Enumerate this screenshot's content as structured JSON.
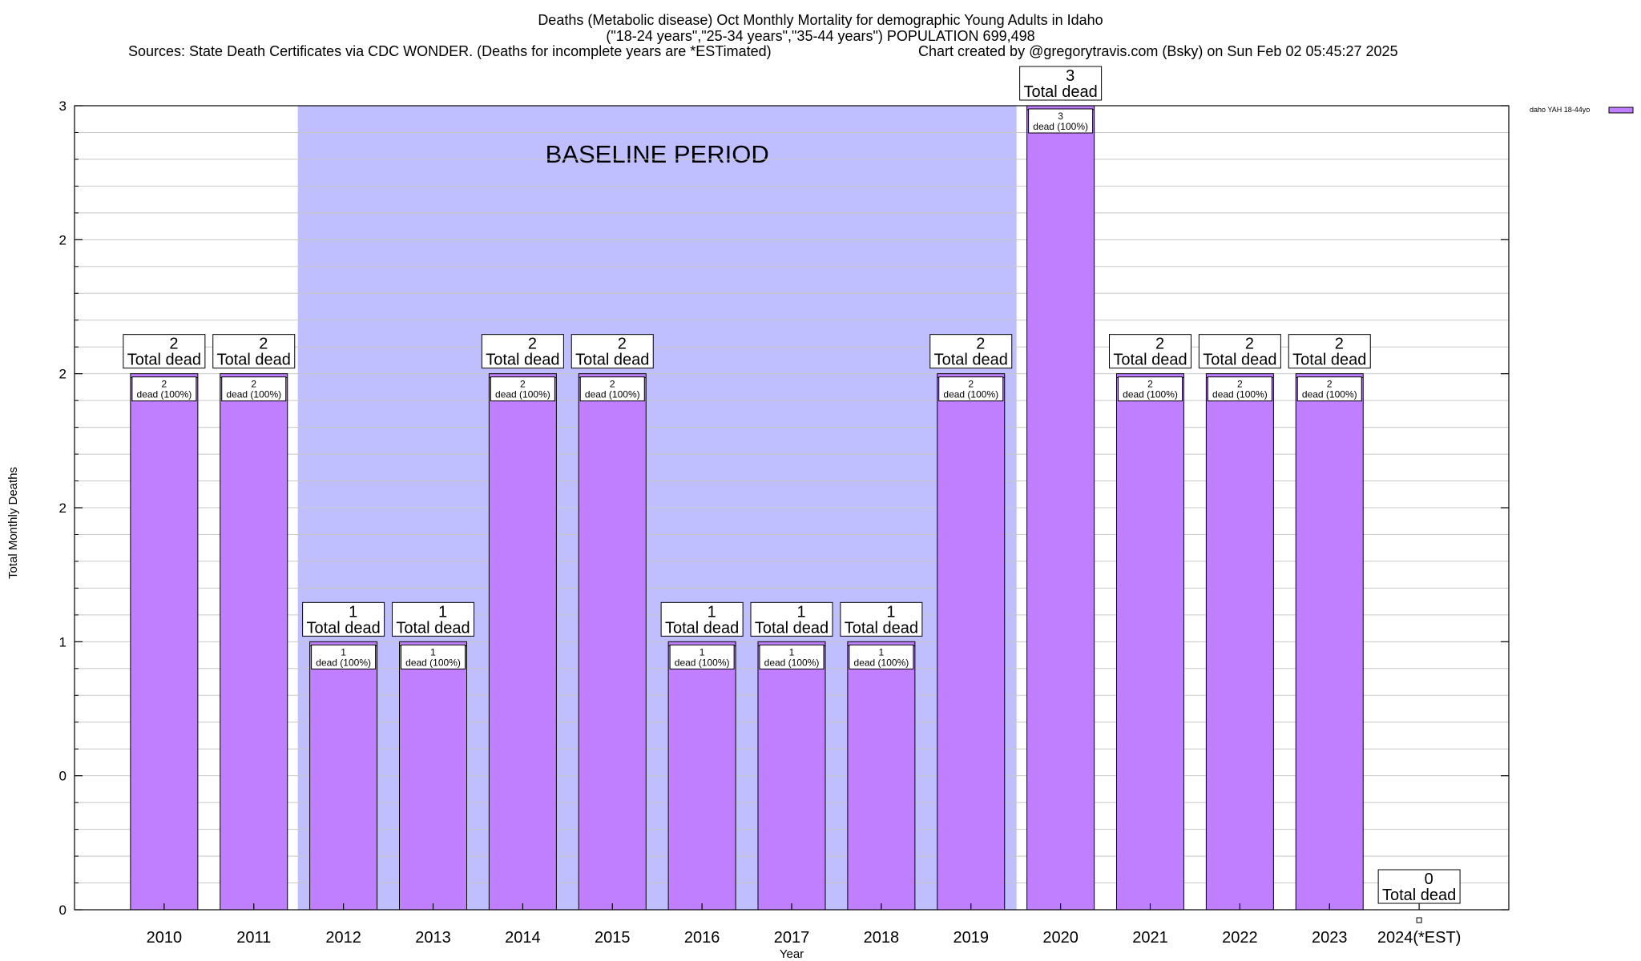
{
  "chart_data": {
    "type": "bar",
    "title_lines": [
      "Deaths (Metabolic disease) Oct Monthly Mortality for demographic Young Adults in Idaho",
      "(\"18-24 years\",\"25-34 years\",\"35-44 years\") POPULATION 699,498"
    ],
    "sources": "Sources: State Death Certificates via CDC WONDER. (Deaths for incomplete years are *ESTimated)",
    "credit": "Chart created by @gregorytravis.com (Bsky) on Sun Feb 02 05:45:27 2025",
    "xlabel": "Year",
    "ylabel": "Total Monthly Deaths",
    "ylim": [
      0,
      3
    ],
    "yticks": [
      0,
      0.5,
      1,
      1.5,
      2,
      2.5,
      3
    ],
    "ytick_labels": [
      "0",
      "0",
      "1",
      "2",
      "2",
      "2",
      "3"
    ],
    "grid": true,
    "categories": [
      "2010",
      "2011",
      "2012",
      "2013",
      "2014",
      "2015",
      "2016",
      "2017",
      "2018",
      "2019",
      "2020",
      "2021",
      "2022",
      "2023",
      "2024(*EST)"
    ],
    "series": [
      {
        "name": "daho YAH 18-44yo",
        "values": [
          2,
          2,
          1,
          1,
          2,
          2,
          1,
          1,
          1,
          2,
          3,
          2,
          2,
          2,
          0
        ]
      }
    ],
    "total_labels": [
      "2",
      "2",
      "1",
      "1",
      "2",
      "2",
      "1",
      "1",
      "1",
      "2",
      "3",
      "2",
      "2",
      "2",
      "0"
    ],
    "total_suffix": "Total dead",
    "inner_labels": [
      "2",
      "2",
      "1",
      "1",
      "2",
      "2",
      "1",
      "1",
      "1",
      "2",
      "3",
      "2",
      "2",
      "2",
      ""
    ],
    "inner_suffix": "dead (100%)",
    "baseline": {
      "label": "BASELINE PERIOD",
      "start": "2012",
      "end": "2019"
    },
    "legend_position": "top-right",
    "colors": {
      "bar": "#bf7fff",
      "baseline": "#bfbfff",
      "grid": "#c8c8c8"
    }
  }
}
